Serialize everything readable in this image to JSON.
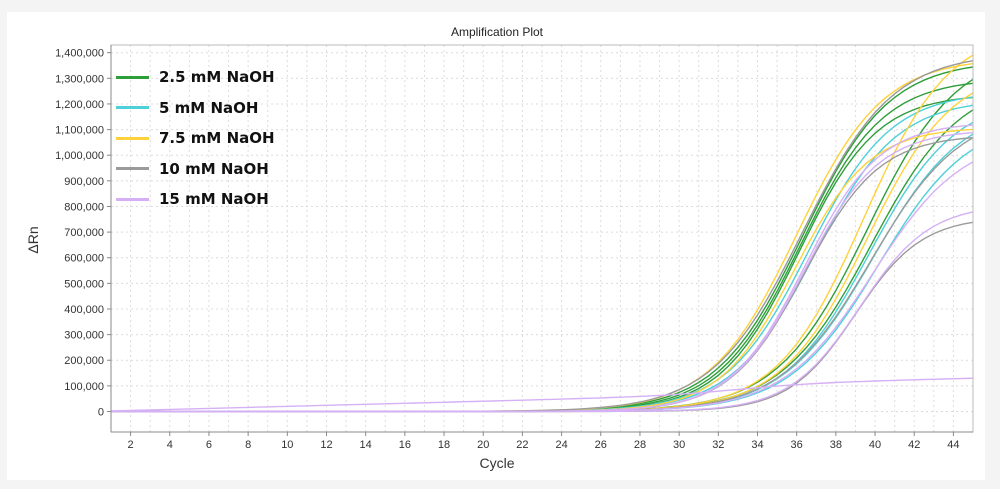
{
  "chart_data": {
    "type": "line",
    "title": "Amplification Plot",
    "xlabel": "Cycle",
    "ylabel": "ΔRn",
    "xlim": [
      1,
      45
    ],
    "ylim": [
      -80000,
      1430000
    ],
    "xticks": [
      2,
      4,
      6,
      8,
      10,
      12,
      14,
      16,
      18,
      20,
      22,
      24,
      26,
      28,
      30,
      32,
      34,
      36,
      38,
      40,
      42,
      44
    ],
    "yticks": [
      0,
      100000,
      200000,
      300000,
      400000,
      500000,
      600000,
      700000,
      800000,
      900000,
      1000000,
      1100000,
      1200000,
      1300000,
      1400000
    ],
    "ytick_labels": [
      "0",
      "100,000",
      "200,000",
      "300,000",
      "400,000",
      "500,000",
      "600,000",
      "700,000",
      "800,000",
      "900,000",
      "1,000,000",
      "1,100,000",
      "1,200,000",
      "1,300,000",
      "1,400,000"
    ],
    "grid": true,
    "legend_position": "top-left",
    "curve_model": "baseline + plateau / (1 + exp(-(cycle - midpoint) / slope))",
    "series": [
      {
        "name": "2.5 mM NaOH",
        "color": "#2e9e3a",
        "curves": [
          {
            "midpoint": 36.3,
            "slope": 2.2,
            "plateau": 1370000,
            "baseline": 0
          },
          {
            "midpoint": 36.2,
            "slope": 2.1,
            "plateau": 1300000,
            "baseline": 0
          },
          {
            "midpoint": 36.1,
            "slope": 2.0,
            "plateau": 1240000,
            "baseline": 0
          },
          {
            "midpoint": 39.6,
            "slope": 2.3,
            "plateau": 1420000,
            "baseline": 0
          },
          {
            "midpoint": 39.8,
            "slope": 2.3,
            "plateau": 1300000,
            "baseline": 0
          }
        ]
      },
      {
        "name": "5 mM NaOH",
        "color": "#4dd0d8",
        "curves": [
          {
            "midpoint": 36.6,
            "slope": 2.1,
            "plateau": 1250000,
            "baseline": 0
          },
          {
            "midpoint": 36.9,
            "slope": 2.1,
            "plateau": 1220000,
            "baseline": 0
          },
          {
            "midpoint": 39.7,
            "slope": 2.2,
            "plateau": 1230000,
            "baseline": 0
          },
          {
            "midpoint": 39.9,
            "slope": 2.3,
            "plateau": 1200000,
            "baseline": 0
          },
          {
            "midpoint": 40.2,
            "slope": 2.3,
            "plateau": 1150000,
            "baseline": 0
          }
        ]
      },
      {
        "name": "7.5 mM NaOH",
        "color": "#ffd23c",
        "curves": [
          {
            "midpoint": 36.0,
            "slope": 2.2,
            "plateau": 1380000,
            "baseline": 0
          },
          {
            "midpoint": 35.9,
            "slope": 1.9,
            "plateau": 1110000,
            "baseline": 0
          },
          {
            "midpoint": 39.4,
            "slope": 2.2,
            "plateau": 1500000,
            "baseline": 0
          },
          {
            "midpoint": 39.6,
            "slope": 2.2,
            "plateau": 1350000,
            "baseline": 0
          }
        ]
      },
      {
        "name": "10 mM NaOH",
        "color": "#9a9a9a",
        "curves": [
          {
            "midpoint": 36.3,
            "slope": 2.3,
            "plateau": 1400000,
            "baseline": 0
          },
          {
            "midpoint": 36.4,
            "slope": 1.9,
            "plateau": 1080000,
            "baseline": 0
          },
          {
            "midpoint": 39.8,
            "slope": 2.3,
            "plateau": 1180000,
            "baseline": 0
          },
          {
            "midpoint": 39.0,
            "slope": 1.7,
            "plateau": 760000,
            "baseline": 0
          }
        ]
      },
      {
        "name": "15 mM NaOH",
        "color": "#d5b0f5",
        "curves": [
          {
            "midpoint": 36.4,
            "slope": 1.9,
            "plateau": 1100000,
            "baseline": 0
          },
          {
            "midpoint": 36.4,
            "slope": 1.9,
            "plateau": 1130000,
            "baseline": 0
          },
          {
            "midpoint": 39.9,
            "slope": 2.3,
            "plateau": 1080000,
            "baseline": 0
          },
          {
            "midpoint": 39.2,
            "slope": 1.8,
            "plateau": 810000,
            "baseline": 0
          },
          {
            "midpoint": 33.0,
            "slope": 2.0,
            "plateau": 40000,
            "baseline": 0,
            "drift_per_cycle": 2000
          }
        ]
      }
    ]
  }
}
